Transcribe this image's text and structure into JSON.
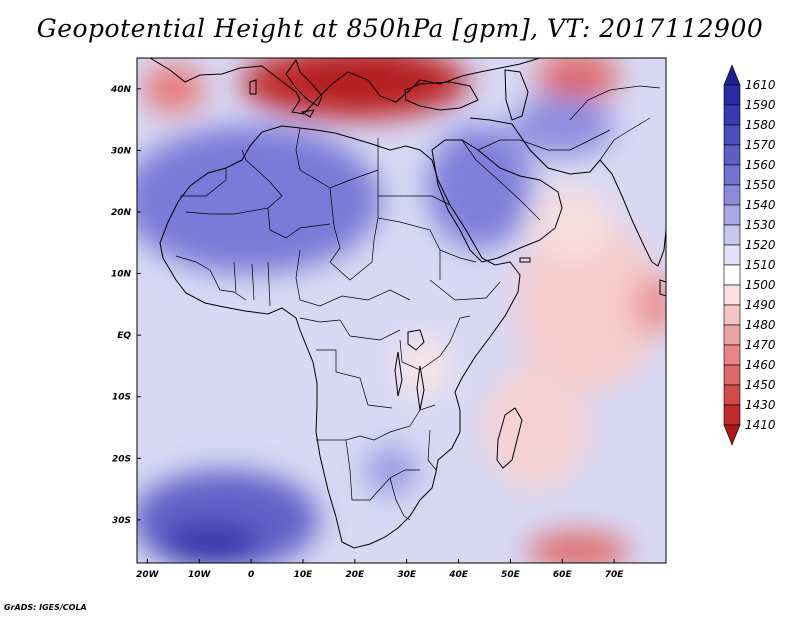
{
  "title": "Geopotential Height at 850hPa [gpm], VT: 2017112900",
  "credit": "GrADS: IGES/COLA",
  "map": {
    "lon_range": [
      -22,
      80
    ],
    "lat_range": [
      -37,
      45
    ],
    "x_ticks": [
      {
        "lon": -20,
        "label": "20W"
      },
      {
        "lon": -10,
        "label": "10W"
      },
      {
        "lon": 0,
        "label": "0"
      },
      {
        "lon": 10,
        "label": "10E"
      },
      {
        "lon": 20,
        "label": "20E"
      },
      {
        "lon": 30,
        "label": "30E"
      },
      {
        "lon": 40,
        "label": "40E"
      },
      {
        "lon": 50,
        "label": "50E"
      },
      {
        "lon": 60,
        "label": "60E"
      },
      {
        "lon": 70,
        "label": "70E"
      }
    ],
    "y_ticks": [
      {
        "lat": 40,
        "label": "40N"
      },
      {
        "lat": 30,
        "label": "30N"
      },
      {
        "lat": 20,
        "label": "20N"
      },
      {
        "lat": 10,
        "label": "10N"
      },
      {
        "lat": 0,
        "label": "EQ"
      },
      {
        "lat": -10,
        "label": "10S"
      },
      {
        "lat": -20,
        "label": "20S"
      },
      {
        "lat": -30,
        "label": "30S"
      }
    ],
    "field_regions": [
      {
        "name": "mediterranean-low",
        "lon": 20,
        "lat": 41,
        "rlon": 22,
        "rlat": 6,
        "color": "#c02a2a"
      },
      {
        "name": "mediterranean-low-core",
        "lon": 22,
        "lat": 42,
        "rlon": 14,
        "rlat": 3,
        "color": "#b01e1e"
      },
      {
        "name": "caspian-low",
        "lon": 63,
        "lat": 42,
        "rlon": 8,
        "rlat": 4,
        "color": "#e06a6a"
      },
      {
        "name": "iberia-low",
        "lon": -15,
        "lat": 40,
        "rlon": 6,
        "rlat": 4,
        "color": "#e87a7a"
      },
      {
        "name": "sahara-high",
        "lon": 0,
        "lat": 22,
        "rlon": 25,
        "rlat": 12,
        "color": "#7a7ad8"
      },
      {
        "name": "arabia-high",
        "lon": 44,
        "lat": 24,
        "rlon": 10,
        "rlat": 10,
        "color": "#7f7fda"
      },
      {
        "name": "iran-high",
        "lon": 60,
        "lat": 34,
        "rlon": 10,
        "rlat": 5,
        "color": "#8f8fe0"
      },
      {
        "name": "indian-ocean-low",
        "lon": 65,
        "lat": 5,
        "rlon": 14,
        "rlat": 14,
        "color": "#f6cccc"
      },
      {
        "name": "arabian-sea-low",
        "lon": 62,
        "lat": 18,
        "rlon": 8,
        "rlat": 6,
        "color": "#f8dede"
      },
      {
        "name": "east-coast-low",
        "lon": 78,
        "lat": 5,
        "rlon": 4,
        "rlat": 5,
        "color": "#e89090"
      },
      {
        "name": "madagascar-trough",
        "lon": 55,
        "lat": -15,
        "rlon": 10,
        "rlat": 10,
        "color": "#f6d2d2"
      },
      {
        "name": "south-atlantic-high",
        "lon": -5,
        "lat": -30,
        "rlon": 18,
        "rlat": 8,
        "color": "#6060c8"
      },
      {
        "name": "south-atlantic-high-core",
        "lon": -8,
        "lat": -34,
        "rlon": 10,
        "rlat": 3,
        "color": "#2e2ea8"
      },
      {
        "name": "southern-ocean-low",
        "lon": 63,
        "lat": -35,
        "rlon": 10,
        "rlat": 3,
        "color": "#e06a6a"
      },
      {
        "name": "east-africa-trough",
        "lon": 33,
        "lat": -5,
        "rlon": 5,
        "rlat": 5,
        "color": "#fae6e6"
      },
      {
        "name": "botswana-high",
        "lon": 27,
        "lat": -22,
        "rlon": 5,
        "rlat": 4,
        "color": "#9a9ae2"
      }
    ]
  },
  "colorbar": {
    "levels": [
      "1610",
      "1590",
      "1580",
      "1570",
      "1560",
      "1550",
      "1540",
      "1530",
      "1520",
      "1510",
      "1500",
      "1490",
      "1480",
      "1470",
      "1460",
      "1450",
      "1430",
      "1410"
    ],
    "colors": [
      "#1e1e96",
      "#2a2aa6",
      "#3a3ab2",
      "#4c4cbc",
      "#5e5ec6",
      "#7474d0",
      "#8c8cda",
      "#a8a8e4",
      "#c6c6ee",
      "#e2e2f6",
      "#ffffff",
      "#fae0e0",
      "#f4c4c4",
      "#eea4a4",
      "#e68686",
      "#de6868",
      "#d24a4a",
      "#c02c2c",
      "#b01818"
    ]
  }
}
